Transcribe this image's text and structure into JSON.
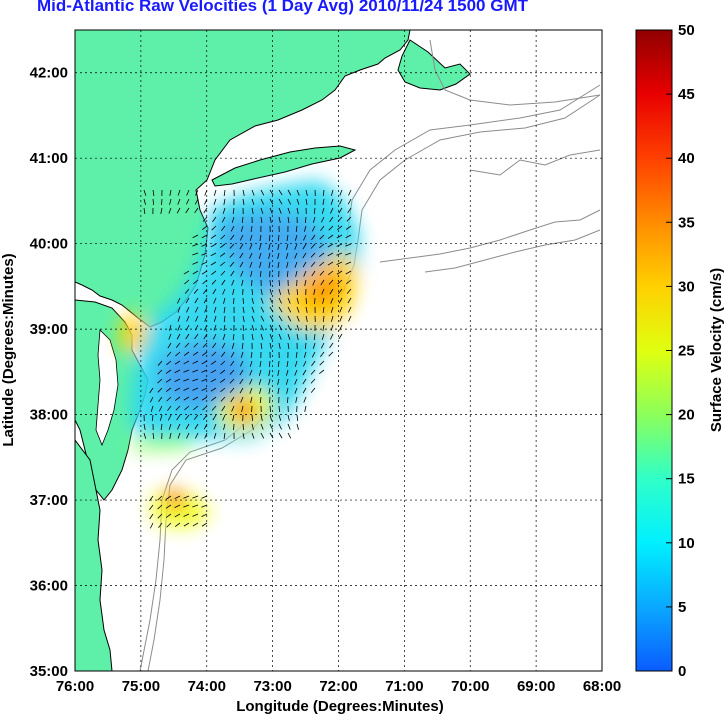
{
  "title": "Mid-Atlantic Raw Velocities (1 Day Avg) 2010/11/24 1500 GMT",
  "x_axis": {
    "label": "Longitude (Degrees:Minutes)",
    "ticks": [
      {
        "value": -76,
        "label": "76:00"
      },
      {
        "value": -75,
        "label": "75:00"
      },
      {
        "value": -74,
        "label": "74:00"
      },
      {
        "value": -73,
        "label": "73:00"
      },
      {
        "value": -72,
        "label": "72:00"
      },
      {
        "value": -71,
        "label": "71:00"
      },
      {
        "value": -70,
        "label": "70:00"
      },
      {
        "value": -69,
        "label": "69:00"
      },
      {
        "value": -68,
        "label": "68:00"
      }
    ],
    "range": [
      -76,
      -68
    ]
  },
  "y_axis": {
    "label": "Latitude (Degrees:Minutes)",
    "ticks": [
      {
        "value": 35,
        "label": "35:00"
      },
      {
        "value": 36,
        "label": "36:00"
      },
      {
        "value": 37,
        "label": "37:00"
      },
      {
        "value": 38,
        "label": "38:00"
      },
      {
        "value": 39,
        "label": "39:00"
      },
      {
        "value": 40,
        "label": "40:00"
      },
      {
        "value": 41,
        "label": "41:00"
      },
      {
        "value": 42,
        "label": "42:00"
      }
    ],
    "range": [
      35,
      42.5
    ]
  },
  "colorbar": {
    "label": "Surface Velocity (cm/s)",
    "ticks": [
      "0",
      "5",
      "10",
      "15",
      "20",
      "25",
      "30",
      "35",
      "40",
      "45",
      "50"
    ],
    "range": [
      0,
      50
    ]
  },
  "colors": {
    "land": "#5ef0a8",
    "coast": "#000000",
    "bathymetry": "#8c8c8c",
    "grid": "#000000",
    "title": "#1a1aff"
  }
}
